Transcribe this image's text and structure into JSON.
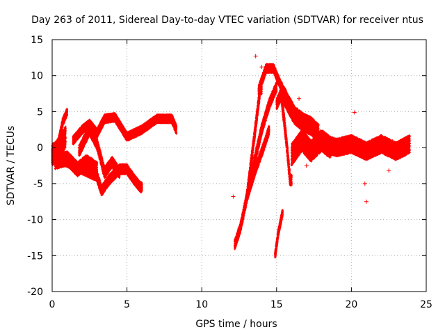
{
  "chart_data": {
    "type": "scatter",
    "title": "Day 263 of 2011, Sidereal Day-to-day VTEC variation (SDTVAR) for receiver ntus",
    "xlabel": "GPS time / hours",
    "ylabel": "SDTVAR / TECUs",
    "xlim": [
      0,
      25
    ],
    "ylim": [
      -20,
      15
    ],
    "xticks": [
      0,
      5,
      10,
      15,
      20,
      25
    ],
    "yticks": [
      -20,
      -15,
      -10,
      -5,
      0,
      5,
      10,
      15
    ],
    "grid": true,
    "marker": "+",
    "color": "#ff0000",
    "series": [
      {
        "name": "ntus",
        "segments": [
          {
            "t_start": 0.0,
            "t_end": 0.9,
            "center": [
              [
                0.0,
                -1.0
              ],
              [
                0.3,
                -0.5
              ],
              [
                0.6,
                0.5
              ],
              [
                0.9,
                1.5
              ]
            ],
            "spread": 3.0
          },
          {
            "t_start": 0.4,
            "t_end": 1.0,
            "center": [
              [
                0.4,
                0.5
              ],
              [
                0.7,
                3.5
              ],
              [
                1.0,
                5.0
              ]
            ],
            "spread": 1.0
          },
          {
            "t_start": 0.0,
            "t_end": 6.0,
            "center": [
              [
                0.0,
                -1.0
              ],
              [
                1.0,
                -2.0
              ],
              [
                2.0,
                -3.0
              ],
              [
                3.0,
                -4.0
              ],
              [
                3.3,
                -6.0
              ],
              [
                3.8,
                -4.5
              ],
              [
                4.5,
                -3.0
              ],
              [
                5.0,
                -3.0
              ],
              [
                5.5,
                -4.5
              ],
              [
                5.9,
                -5.5
              ]
            ],
            "spread": 1.4
          },
          {
            "t_start": 0.2,
            "t_end": 3.0,
            "center": [
              [
                0.2,
                -2.0
              ],
              [
                1.0,
                -1.5
              ],
              [
                1.7,
                -3.0
              ],
              [
                2.3,
                -2.0
              ],
              [
                3.0,
                -3.0
              ]
            ],
            "spread": 2.0
          },
          {
            "t_start": 1.4,
            "t_end": 8.3,
            "center": [
              [
                1.4,
                1.0
              ],
              [
                2.0,
                2.5
              ],
              [
                2.5,
                3.3
              ],
              [
                3.0,
                2.0
              ],
              [
                3.5,
                4.0
              ],
              [
                4.2,
                4.2
              ],
              [
                5.0,
                1.5
              ],
              [
                6.0,
                2.5
              ],
              [
                7.0,
                4.0
              ],
              [
                8.0,
                4.0
              ],
              [
                8.3,
                2.5
              ]
            ],
            "spread": 1.2
          },
          {
            "t_start": 1.8,
            "t_end": 4.5,
            "center": [
              [
                1.8,
                -0.5
              ],
              [
                2.5,
                2.5
              ],
              [
                3.0,
                0.5
              ],
              [
                3.5,
                -3.5
              ],
              [
                4.0,
                -2.0
              ],
              [
                4.5,
                -3.5
              ]
            ],
            "spread": 1.5
          },
          {
            "t_start": 12.2,
            "t_end": 14.0,
            "center": [
              [
                12.2,
                -13.5
              ],
              [
                12.6,
                -11.0
              ],
              [
                13.0,
                -7.0
              ],
              [
                13.3,
                -2.0
              ],
              [
                13.6,
                3.0
              ],
              [
                13.9,
                8.0
              ]
            ],
            "spread": 1.3
          },
          {
            "t_start": 13.8,
            "t_end": 15.4,
            "center": [
              [
                13.8,
                8.0
              ],
              [
                14.3,
                11.0
              ],
              [
                14.8,
                11.0
              ],
              [
                15.1,
                9.5
              ],
              [
                15.4,
                8.0
              ]
            ],
            "spread": 1.2
          },
          {
            "t_start": 13.3,
            "t_end": 15.0,
            "center": [
              [
                13.3,
                -4.0
              ],
              [
                14.0,
                2.5
              ],
              [
                14.5,
                6.0
              ],
              [
                15.0,
                8.5
              ]
            ],
            "spread": 1.4
          },
          {
            "t_start": 13.0,
            "t_end": 14.5,
            "center": [
              [
                13.0,
                -7.0
              ],
              [
                13.6,
                -3.0
              ],
              [
                14.2,
                0.5
              ],
              [
                14.5,
                2.5
              ]
            ],
            "spread": 1.2
          },
          {
            "t_start": 14.9,
            "t_end": 15.4,
            "center": [
              [
                14.9,
                -15.0
              ],
              [
                15.1,
                -12.0
              ],
              [
                15.4,
                -9.0
              ]
            ],
            "spread": 0.9
          },
          {
            "t_start": 15.0,
            "t_end": 16.0,
            "center": [
              [
                15.0,
                6.0
              ],
              [
                15.3,
                7.5
              ],
              [
                15.6,
                2.0
              ],
              [
                15.9,
                -4.5
              ]
            ],
            "spread": 1.5
          },
          {
            "t_start": 15.3,
            "t_end": 17.8,
            "center": [
              [
                15.3,
                8.0
              ],
              [
                15.8,
                6.0
              ],
              [
                16.2,
                4.5
              ],
              [
                16.8,
                3.5
              ],
              [
                17.3,
                3.0
              ],
              [
                17.8,
                2.0
              ]
            ],
            "spread": 2.5
          },
          {
            "t_start": 16.0,
            "t_end": 18.6,
            "center": [
              [
                16.0,
                -1.0
              ],
              [
                16.7,
                1.0
              ],
              [
                17.3,
                -0.5
              ],
              [
                18.0,
                1.0
              ],
              [
                18.6,
                0.0
              ]
            ],
            "spread": 3.0
          },
          {
            "t_start": 17.6,
            "t_end": 23.9,
            "center": [
              [
                17.6,
                1.0
              ],
              [
                19.0,
                0.0
              ],
              [
                20.0,
                0.5
              ],
              [
                21.0,
                -0.5
              ],
              [
                22.0,
                0.5
              ],
              [
                23.0,
                -0.5
              ],
              [
                23.9,
                0.5
              ]
            ],
            "spread": 2.5
          }
        ],
        "outliers": [
          [
            12.1,
            -6.8
          ],
          [
            13.6,
            12.7
          ],
          [
            20.2,
            4.9
          ],
          [
            21.0,
            -7.5
          ],
          [
            20.9,
            -5.0
          ],
          [
            22.5,
            -3.2
          ],
          [
            17.0,
            -2.5
          ],
          [
            14.0,
            11.2
          ],
          [
            16.5,
            6.8
          ]
        ]
      }
    ]
  }
}
